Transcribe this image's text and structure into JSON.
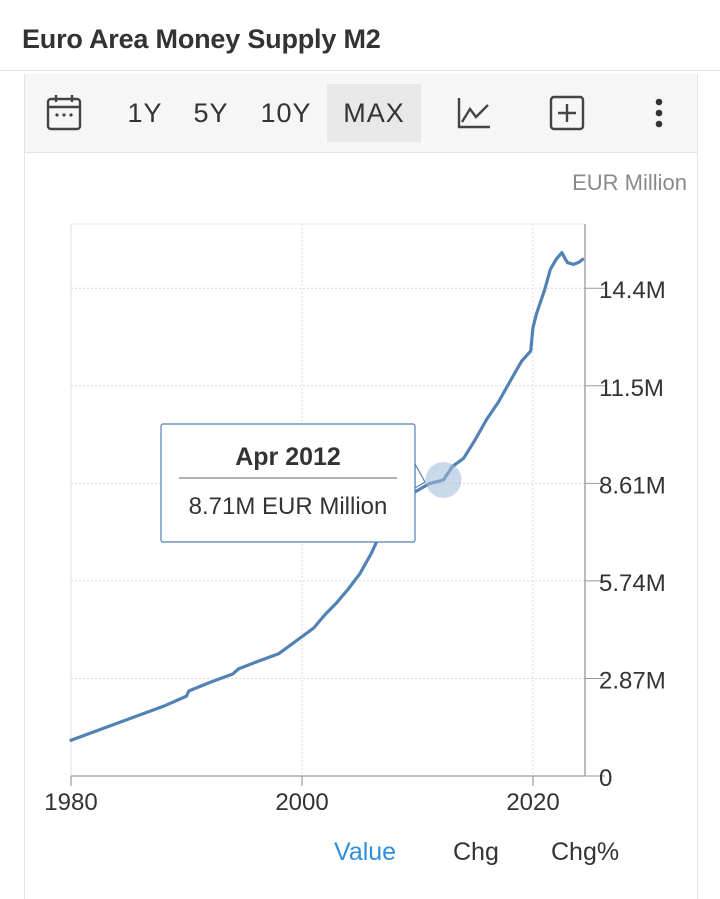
{
  "page": {
    "title": "Euro Area Money Supply M2"
  },
  "toolbar": {
    "calendar_icon": "calendar-icon",
    "ranges": [
      "1Y",
      "5Y",
      "10Y",
      "MAX"
    ],
    "active_range": "MAX",
    "chart_type_icon": "line-chart-icon",
    "add_icon": "plus-square-icon",
    "more_icon": "more-vertical-icon"
  },
  "tabs": {
    "value": "Value",
    "chg": "Chg",
    "chg_pct": "Chg%",
    "active": "Value"
  },
  "colors": {
    "line": "#5282b3",
    "active_tab": "#2f8fd8",
    "tooltip_border": "#5282b3"
  },
  "chart_data": {
    "type": "line",
    "unit_label": "EUR Million",
    "x_ticks": [
      "1980",
      "2000",
      "2020"
    ],
    "y_ticks": [
      "0",
      "2.87M",
      "5.74M",
      "8.61M",
      "11.5M",
      "14.4M"
    ],
    "xlim": [
      1980,
      2024.5
    ],
    "ylim": [
      0,
      16.24
    ],
    "grid": true,
    "series": [
      {
        "x": [
          1980,
          1982,
          1984,
          1986,
          1988,
          1990,
          1990.2,
          1992,
          1994,
          1994.5,
          1996,
          1998,
          1999,
          2000,
          2001,
          2002,
          2003,
          2004,
          2005,
          2006,
          2007,
          2008,
          2009,
          2010,
          2011,
          2012.25,
          2013,
          2014,
          2015,
          2016,
          2017,
          2018,
          2019,
          2019.8,
          2020,
          2020.3,
          2021,
          2021.5,
          2022,
          2022.5,
          2022.8,
          2023,
          2023.5,
          2024,
          2024.3
        ],
        "y": [
          1.05,
          1.3,
          1.55,
          1.8,
          2.05,
          2.35,
          2.5,
          2.75,
          3.0,
          3.15,
          3.35,
          3.6,
          3.85,
          4.1,
          4.35,
          4.75,
          5.1,
          5.5,
          5.95,
          6.55,
          7.3,
          8.0,
          8.25,
          8.4,
          8.6,
          8.71,
          9.1,
          9.35,
          9.9,
          10.5,
          11.0,
          11.6,
          12.2,
          12.5,
          13.2,
          13.6,
          14.3,
          14.9,
          15.2,
          15.4,
          15.2,
          15.1,
          15.05,
          15.12,
          15.2
        ]
      }
    ],
    "tooltip": {
      "date": "Apr 2012",
      "value": "8.71M EUR Million",
      "x": 2012.25,
      "y": 8.71
    }
  }
}
